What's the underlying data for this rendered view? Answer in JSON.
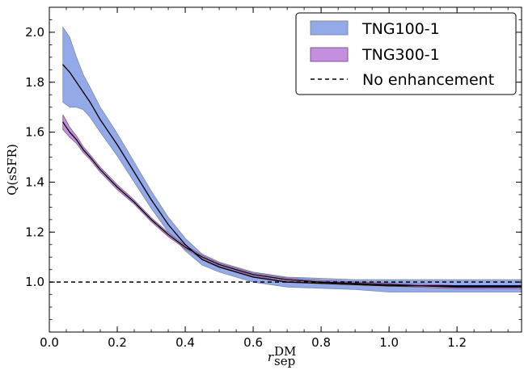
{
  "chart_data": {
    "type": "line",
    "xlabel": "r",
    "xlabel_sup": "DM",
    "xlabel_sub": "sep",
    "ylabel": "Q(sSFR)",
    "xlim": [
      0.0,
      1.39
    ],
    "ylim": [
      0.8,
      2.1
    ],
    "xticks": [
      0.0,
      0.2,
      0.4,
      0.6,
      0.8,
      1.0,
      1.2
    ],
    "xtick_labels": [
      "0.0",
      "0.2",
      "0.4",
      "0.6",
      "0.8",
      "1.0",
      "1.2"
    ],
    "yticks": [
      1.0,
      1.2,
      1.4,
      1.6,
      1.8,
      2.0
    ],
    "ytick_labels": [
      "1.0",
      "1.2",
      "1.4",
      "1.6",
      "1.8",
      "2.0"
    ],
    "grid": false,
    "legend_position": "top-right",
    "series": [
      {
        "name": "TNG100-1",
        "color": "#93a9e8",
        "x": [
          0.04,
          0.06,
          0.08,
          0.1,
          0.12,
          0.15,
          0.2,
          0.25,
          0.3,
          0.35,
          0.4,
          0.45,
          0.5,
          0.55,
          0.6,
          0.7,
          0.8,
          0.9,
          1.0,
          1.1,
          1.2,
          1.3,
          1.39
        ],
        "y": [
          1.87,
          1.84,
          1.8,
          1.76,
          1.72,
          1.65,
          1.55,
          1.44,
          1.33,
          1.23,
          1.15,
          1.09,
          1.06,
          1.04,
          1.02,
          1.0,
          0.995,
          0.99,
          0.985,
          0.985,
          0.985,
          0.985,
          0.985
        ],
        "band": [
          0.15,
          0.14,
          0.1,
          0.07,
          0.06,
          0.05,
          0.045,
          0.04,
          0.035,
          0.03,
          0.025,
          0.022,
          0.02,
          0.02,
          0.02,
          0.02,
          0.02,
          0.02,
          0.025,
          0.025,
          0.025,
          0.025,
          0.025
        ]
      },
      {
        "name": "TNG300-1",
        "color": "#c58fe0",
        "x": [
          0.04,
          0.06,
          0.08,
          0.1,
          0.12,
          0.15,
          0.2,
          0.25,
          0.3,
          0.35,
          0.4,
          0.45,
          0.5,
          0.55,
          0.6,
          0.7,
          0.8,
          0.9,
          1.0,
          1.1,
          1.2,
          1.3,
          1.39
        ],
        "y": [
          1.64,
          1.6,
          1.57,
          1.53,
          1.5,
          1.45,
          1.38,
          1.32,
          1.25,
          1.19,
          1.14,
          1.1,
          1.07,
          1.05,
          1.03,
          1.01,
          1.0,
          0.995,
          0.99,
          0.985,
          0.98,
          0.98,
          0.98
        ],
        "band": [
          0.03,
          0.02,
          0.015,
          0.012,
          0.01,
          0.01,
          0.01,
          0.008,
          0.008,
          0.008,
          0.007,
          0.007,
          0.006,
          0.006,
          0.006,
          0.006,
          0.006,
          0.006,
          0.006,
          0.006,
          0.006,
          0.006,
          0.006
        ]
      }
    ],
    "reference_line": {
      "name": "No enhancement",
      "y": 1.0,
      "style": "dashed",
      "color": "#000000"
    }
  }
}
